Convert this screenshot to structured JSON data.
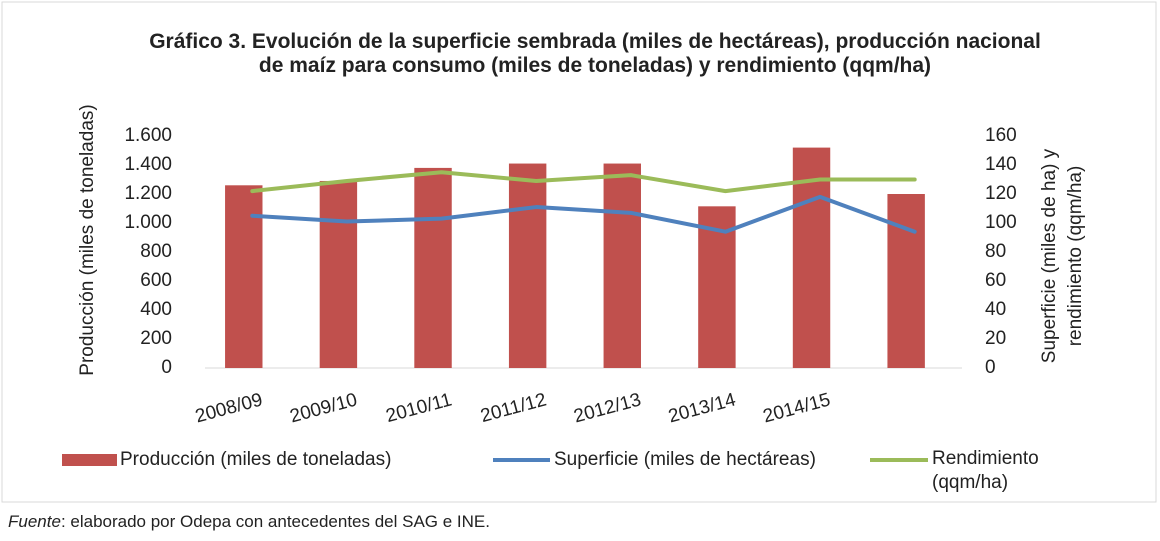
{
  "chart_data": {
    "type": "bar-line",
    "title": "Gráfico 3. Evolución de la superficie sembrada (miles de hectáreas), producción nacional de maíz para consumo (miles de toneladas) y rendimiento (qqm/ha)",
    "y_label": "Producción (miles de toneladas)",
    "y2_label": "Superficie (miles de ha) y rendimiento (qqm/ha)",
    "categories": [
      "2008/09",
      "2009/10",
      "2010/11",
      "2011/12",
      "2012/13",
      "2013/14",
      "2014/15",
      null
    ],
    "series": [
      {
        "name": "Producción (miles de toneladas)",
        "type": "bar",
        "color": "#c0504d",
        "values": [
          1260,
          1290,
          1380,
          1410,
          1410,
          1115,
          1520,
          1200
        ]
      },
      {
        "name": "Superficie (miles de hectáreas)",
        "type": "line",
        "axis": "y2",
        "color": "#4f81bd",
        "values": [
          105,
          101,
          103,
          111,
          107,
          94,
          118,
          94
        ]
      },
      {
        "name": "Rendimiento (qqm/ha)",
        "type": "line",
        "axis": "y2",
        "color": "#9bbb59",
        "values": [
          122,
          129,
          135,
          129,
          133,
          122,
          130,
          130
        ]
      }
    ],
    "ylim": [
      0,
      1600
    ],
    "yticks": [
      0,
      200,
      400,
      600,
      800,
      {
        "value": 1000,
        "label": "1.000"
      },
      {
        "value": 1200,
        "label": "1.200"
      },
      {
        "value": 1400,
        "label": "1.400"
      },
      {
        "value": 1600,
        "label": "1.600"
      }
    ],
    "y2lim": [
      0,
      160
    ],
    "y2ticks": [
      0,
      20,
      40,
      60,
      80,
      100,
      120,
      140,
      160
    ]
  },
  "source_label": "Fuente",
  "source_text": ": elaborado por Odepa con antecedentes del SAG e INE."
}
